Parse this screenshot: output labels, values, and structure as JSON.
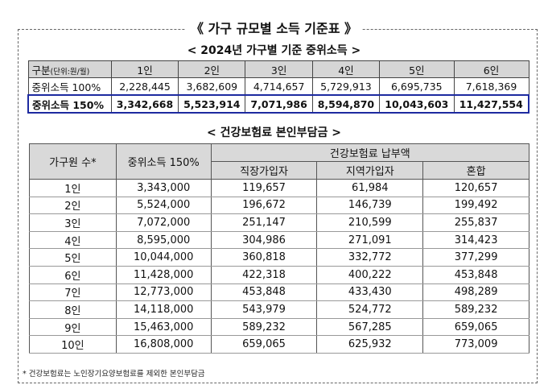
{
  "title": "《 가구 규모별 소득 기준표 》",
  "section1_title": "< 2024년 가구별 기준 중위소득 >",
  "table1": {
    "header_label": "구분",
    "header_unit": "(단위:원/월)",
    "columns": [
      "1인",
      "2인",
      "3인",
      "4인",
      "5인",
      "6인"
    ],
    "rows": [
      {
        "label": "중위소득 100%",
        "values": [
          "2,228,445",
          "3,682,609",
          "4,714,657",
          "5,729,913",
          "6,695,735",
          "7,618,369"
        ]
      },
      {
        "label": "중위소득 150%",
        "values": [
          "3,342,668",
          "5,523,914",
          "7,071,986",
          "8,594,870",
          "10,043,603",
          "11,427,554"
        ]
      }
    ]
  },
  "section2_title": "< 건강보험료 본인부담금 >",
  "table2": {
    "col_household": "가구원 수*",
    "col_income": "중위소득 150%",
    "col_premium_group": "건강보험료 납부액",
    "sub_columns": [
      "직장가입자",
      "지역가입자",
      "혼합"
    ],
    "rows": [
      {
        "household": "1인",
        "income": "3,343,000",
        "employee": "119,657",
        "regional": "61,984",
        "mixed": "120,657"
      },
      {
        "household": "2인",
        "income": "5,524,000",
        "employee": "196,672",
        "regional": "146,739",
        "mixed": "199,492"
      },
      {
        "household": "3인",
        "income": "7,072,000",
        "employee": "251,147",
        "regional": "210,599",
        "mixed": "255,837"
      },
      {
        "household": "4인",
        "income": "8,595,000",
        "employee": "304,986",
        "regional": "271,091",
        "mixed": "314,423"
      },
      {
        "household": "5인",
        "income": "10,044,000",
        "employee": "360,818",
        "regional": "332,772",
        "mixed": "377,299"
      },
      {
        "household": "6인",
        "income": "11,428,000",
        "employee": "422,318",
        "regional": "400,222",
        "mixed": "453,848"
      },
      {
        "household": "7인",
        "income": "12,773,000",
        "employee": "453,848",
        "regional": "433,430",
        "mixed": "498,289"
      },
      {
        "household": "8인",
        "income": "14,118,000",
        "employee": "543,979",
        "regional": "524,772",
        "mixed": "589,232"
      },
      {
        "household": "9인",
        "income": "15,463,000",
        "employee": "589,232",
        "regional": "567,285",
        "mixed": "659,065"
      },
      {
        "household": "10인",
        "income": "16,808,000",
        "employee": "659,065",
        "regional": "625,932",
        "mixed": "773,009"
      }
    ]
  },
  "footnote": "* 건강보험료는 노인장기요양보험료를 제외한 본인부담금"
}
